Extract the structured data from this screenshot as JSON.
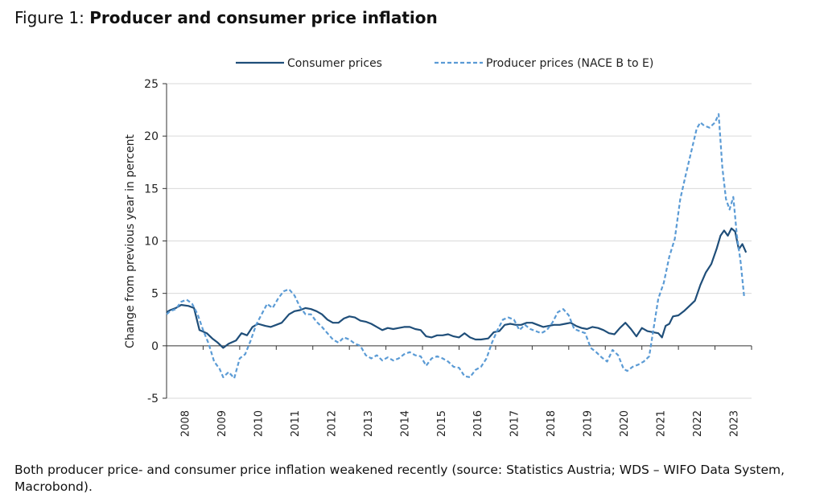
{
  "figure": {
    "label": "Figure 1:",
    "title": "Producer and consumer price inflation",
    "caption": "Both producer price- and consumer price inflation weakened recently (source: Statistics Austria; WDS – WIFO Data System, Macrobond)."
  },
  "chart_data": {
    "type": "line",
    "title": "Producer and consumer price inflation",
    "xlabel": "",
    "ylabel": "Change from previous year in percent",
    "ylim": [
      -5,
      25
    ],
    "yticks": [
      -5,
      0,
      5,
      10,
      15,
      20,
      25
    ],
    "xlim": [
      2007.5,
      2023.5
    ],
    "xticks": [
      "2008",
      "2009",
      "2010",
      "2011",
      "2012",
      "2013",
      "2014",
      "2015",
      "2016",
      "2017",
      "2018",
      "2019",
      "2020",
      "2021",
      "2022",
      "2023"
    ],
    "grid": "horizontal",
    "legend_position": "top",
    "series": [
      {
        "name": "Consumer prices",
        "color": "#1f4e79",
        "style": "solid",
        "points": [
          [
            2007.5,
            3.2
          ],
          [
            2007.6,
            3.4
          ],
          [
            2007.75,
            3.6
          ],
          [
            2007.9,
            3.9
          ],
          [
            2008.1,
            3.8
          ],
          [
            2008.25,
            3.6
          ],
          [
            2008.4,
            1.5
          ],
          [
            2008.6,
            1.2
          ],
          [
            2008.75,
            0.7
          ],
          [
            2008.9,
            0.3
          ],
          [
            2009.05,
            -0.2
          ],
          [
            2009.2,
            0.2
          ],
          [
            2009.4,
            0.5
          ],
          [
            2009.55,
            1.2
          ],
          [
            2009.7,
            1.0
          ],
          [
            2009.85,
            1.8
          ],
          [
            2010.0,
            2.1
          ],
          [
            2010.2,
            1.9
          ],
          [
            2010.35,
            1.8
          ],
          [
            2010.5,
            2.0
          ],
          [
            2010.65,
            2.2
          ],
          [
            2010.85,
            3.0
          ],
          [
            2011.0,
            3.3
          ],
          [
            2011.15,
            3.4
          ],
          [
            2011.3,
            3.6
          ],
          [
            2011.45,
            3.5
          ],
          [
            2011.6,
            3.3
          ],
          [
            2011.75,
            3.0
          ],
          [
            2011.9,
            2.5
          ],
          [
            2012.05,
            2.2
          ],
          [
            2012.2,
            2.2
          ],
          [
            2012.35,
            2.6
          ],
          [
            2012.5,
            2.8
          ],
          [
            2012.65,
            2.7
          ],
          [
            2012.8,
            2.4
          ],
          [
            2012.95,
            2.3
          ],
          [
            2013.1,
            2.1
          ],
          [
            2013.25,
            1.8
          ],
          [
            2013.4,
            1.5
          ],
          [
            2013.55,
            1.7
          ],
          [
            2013.7,
            1.6
          ],
          [
            2013.85,
            1.7
          ],
          [
            2014.0,
            1.8
          ],
          [
            2014.15,
            1.8
          ],
          [
            2014.3,
            1.6
          ],
          [
            2014.45,
            1.5
          ],
          [
            2014.6,
            0.9
          ],
          [
            2014.75,
            0.8
          ],
          [
            2014.9,
            1.0
          ],
          [
            2015.05,
            1.0
          ],
          [
            2015.2,
            1.1
          ],
          [
            2015.35,
            0.9
          ],
          [
            2015.5,
            0.8
          ],
          [
            2015.65,
            1.2
          ],
          [
            2015.8,
            0.8
          ],
          [
            2015.95,
            0.6
          ],
          [
            2016.1,
            0.6
          ],
          [
            2016.3,
            0.7
          ],
          [
            2016.45,
            1.3
          ],
          [
            2016.6,
            1.4
          ],
          [
            2016.75,
            2.0
          ],
          [
            2016.9,
            2.1
          ],
          [
            2017.05,
            2.0
          ],
          [
            2017.2,
            2.0
          ],
          [
            2017.35,
            2.2
          ],
          [
            2017.5,
            2.2
          ],
          [
            2017.65,
            2.0
          ],
          [
            2017.8,
            1.8
          ],
          [
            2017.95,
            1.9
          ],
          [
            2018.1,
            2.0
          ],
          [
            2018.25,
            2.0
          ],
          [
            2018.4,
            2.1
          ],
          [
            2018.55,
            2.2
          ],
          [
            2018.7,
            1.9
          ],
          [
            2018.85,
            1.7
          ],
          [
            2019.0,
            1.6
          ],
          [
            2019.15,
            1.8
          ],
          [
            2019.3,
            1.7
          ],
          [
            2019.45,
            1.5
          ],
          [
            2019.6,
            1.2
          ],
          [
            2019.75,
            1.1
          ],
          [
            2019.9,
            1.7
          ],
          [
            2020.05,
            2.2
          ],
          [
            2020.2,
            1.6
          ],
          [
            2020.35,
            0.9
          ],
          [
            2020.5,
            1.7
          ],
          [
            2020.65,
            1.4
          ],
          [
            2020.8,
            1.3
          ],
          [
            2020.95,
            1.2
          ],
          [
            2021.05,
            0.8
          ],
          [
            2021.15,
            1.9
          ],
          [
            2021.25,
            2.1
          ],
          [
            2021.35,
            2.8
          ],
          [
            2021.5,
            2.9
          ],
          [
            2021.65,
            3.3
          ],
          [
            2021.8,
            3.8
          ],
          [
            2021.95,
            4.3
          ],
          [
            2022.1,
            5.8
          ],
          [
            2022.25,
            7.0
          ],
          [
            2022.4,
            7.8
          ],
          [
            2022.55,
            9.3
          ],
          [
            2022.65,
            10.5
          ],
          [
            2022.75,
            11.0
          ],
          [
            2022.85,
            10.5
          ],
          [
            2022.95,
            11.2
          ],
          [
            2023.05,
            10.9
          ],
          [
            2023.15,
            9.2
          ],
          [
            2023.25,
            9.7
          ],
          [
            2023.35,
            8.9
          ]
        ]
      },
      {
        "name": "Producer prices (NACE B to E)",
        "color": "#5b9bd5",
        "style": "dashed",
        "points": [
          [
            2007.5,
            3.0
          ],
          [
            2007.6,
            3.3
          ],
          [
            2007.75,
            3.5
          ],
          [
            2007.9,
            4.2
          ],
          [
            2008.05,
            4.4
          ],
          [
            2008.2,
            4.0
          ],
          [
            2008.35,
            3.0
          ],
          [
            2008.5,
            1.5
          ],
          [
            2008.65,
            0.2
          ],
          [
            2008.8,
            -1.5
          ],
          [
            2008.95,
            -2.2
          ],
          [
            2009.05,
            -3.0
          ],
          [
            2009.2,
            -2.5
          ],
          [
            2009.35,
            -3.1
          ],
          [
            2009.5,
            -1.2
          ],
          [
            2009.65,
            -0.8
          ],
          [
            2009.8,
            0.5
          ],
          [
            2009.95,
            2.0
          ],
          [
            2010.1,
            3.0
          ],
          [
            2010.25,
            4.0
          ],
          [
            2010.4,
            3.6
          ],
          [
            2010.55,
            4.5
          ],
          [
            2010.7,
            5.2
          ],
          [
            2010.85,
            5.4
          ],
          [
            2011.0,
            4.8
          ],
          [
            2011.15,
            3.7
          ],
          [
            2011.3,
            3.0
          ],
          [
            2011.45,
            3.0
          ],
          [
            2011.6,
            2.3
          ],
          [
            2011.75,
            1.8
          ],
          [
            2011.9,
            1.2
          ],
          [
            2012.05,
            0.6
          ],
          [
            2012.2,
            0.3
          ],
          [
            2012.35,
            0.8
          ],
          [
            2012.5,
            0.6
          ],
          [
            2012.65,
            0.2
          ],
          [
            2012.8,
            0.0
          ],
          [
            2012.95,
            -0.9
          ],
          [
            2013.1,
            -1.2
          ],
          [
            2013.25,
            -0.9
          ],
          [
            2013.4,
            -1.4
          ],
          [
            2013.55,
            -1.1
          ],
          [
            2013.7,
            -1.4
          ],
          [
            2013.85,
            -1.2
          ],
          [
            2014.0,
            -0.8
          ],
          [
            2014.15,
            -0.6
          ],
          [
            2014.3,
            -0.9
          ],
          [
            2014.45,
            -1.0
          ],
          [
            2014.6,
            -1.9
          ],
          [
            2014.75,
            -1.2
          ],
          [
            2014.9,
            -1.0
          ],
          [
            2015.05,
            -1.2
          ],
          [
            2015.2,
            -1.5
          ],
          [
            2015.35,
            -2.0
          ],
          [
            2015.5,
            -2.1
          ],
          [
            2015.65,
            -2.9
          ],
          [
            2015.8,
            -3.0
          ],
          [
            2015.95,
            -2.3
          ],
          [
            2016.1,
            -2.0
          ],
          [
            2016.25,
            -1.2
          ],
          [
            2016.4,
            0.3
          ],
          [
            2016.55,
            1.5
          ],
          [
            2016.7,
            2.5
          ],
          [
            2016.85,
            2.7
          ],
          [
            2017.0,
            2.5
          ],
          [
            2017.15,
            1.5
          ],
          [
            2017.3,
            2.0
          ],
          [
            2017.45,
            1.6
          ],
          [
            2017.6,
            1.4
          ],
          [
            2017.75,
            1.2
          ],
          [
            2017.9,
            1.5
          ],
          [
            2018.05,
            2.2
          ],
          [
            2018.2,
            3.2
          ],
          [
            2018.35,
            3.5
          ],
          [
            2018.5,
            2.9
          ],
          [
            2018.65,
            1.6
          ],
          [
            2018.8,
            1.4
          ],
          [
            2018.95,
            1.2
          ],
          [
            2019.1,
            -0.2
          ],
          [
            2019.25,
            -0.6
          ],
          [
            2019.4,
            -1.1
          ],
          [
            2019.55,
            -1.5
          ],
          [
            2019.7,
            -0.4
          ],
          [
            2019.85,
            -0.9
          ],
          [
            2020.0,
            -2.2
          ],
          [
            2020.1,
            -2.4
          ],
          [
            2020.25,
            -2.0
          ],
          [
            2020.4,
            -1.8
          ],
          [
            2020.55,
            -1.5
          ],
          [
            2020.7,
            -1.0
          ],
          [
            2020.8,
            1.2
          ],
          [
            2020.95,
            4.5
          ],
          [
            2021.1,
            6.0
          ],
          [
            2021.25,
            8.5
          ],
          [
            2021.4,
            10.2
          ],
          [
            2021.55,
            14.0
          ],
          [
            2021.7,
            16.3
          ],
          [
            2021.85,
            18.5
          ],
          [
            2022.0,
            20.7
          ],
          [
            2022.1,
            21.3
          ],
          [
            2022.2,
            21.0
          ],
          [
            2022.35,
            20.8
          ],
          [
            2022.5,
            21.3
          ],
          [
            2022.6,
            22.1
          ],
          [
            2022.7,
            17.0
          ],
          [
            2022.8,
            14.0
          ],
          [
            2022.9,
            13.0
          ],
          [
            2023.0,
            14.2
          ],
          [
            2023.1,
            10.5
          ],
          [
            2023.2,
            8.0
          ],
          [
            2023.3,
            4.6
          ]
        ]
      }
    ]
  }
}
